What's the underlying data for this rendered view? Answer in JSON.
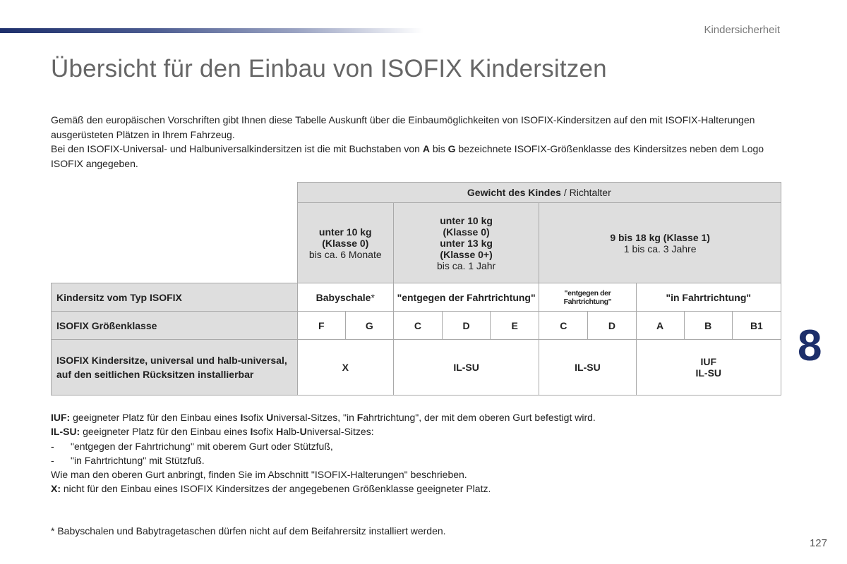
{
  "header": {
    "section": "Kindersicherheit"
  },
  "title": "Übersicht für den Einbau von ISOFIX Kindersitzen",
  "intro": {
    "p1": "Gemäß den europäischen Vorschriften gibt Ihnen diese Tabelle Auskunft über die Einbaumöglichkeiten von ISOFIX-Kindersitzen auf den mit ISOFIX-Halterungen ausgerüsteten Plätzen in Ihrem Fahrzeug.",
    "p2a": "Bei den ISOFIX-Universal- und Halbuniversalkindersitzen ist die mit Buchstaben von ",
    "p2b": "A",
    "p2c": " bis ",
    "p2d": "G",
    "p2e": " bezeichnete ISOFIX-Größenklasse des Kindersitzes neben dem Logo ISOFIX angegeben."
  },
  "table": {
    "weight_header_bold": "Gewicht des Kindes",
    "weight_header_rest": " / Richtalter",
    "groups": [
      {
        "lines": [
          "unter 10 kg",
          "(Klasse 0)"
        ],
        "sub": "bis ca. 6 Monate"
      },
      {
        "lines": [
          "unter 10 kg",
          "(Klasse 0)",
          "unter 13 kg",
          "(Klasse 0+)"
        ],
        "sub": "bis ca. 1 Jahr"
      },
      {
        "lines": [
          "9 bis 18 kg (Klasse 1)"
        ],
        "sub": "1 bis ca. 3 Jahre"
      }
    ],
    "row_type": {
      "label": "Kindersitz vom Typ ISOFIX",
      "values": [
        "Babyschale",
        "*",
        "\"entgegen der Fahrtrichtung\"",
        "\"entgegen der Fahrtrichtung\"",
        "\"in Fahrtrichtung\""
      ]
    },
    "row_size": {
      "label": "ISOFIX Größenklasse",
      "values": [
        "F",
        "G",
        "C",
        "D",
        "E",
        "C",
        "D",
        "A",
        "B",
        "B1"
      ]
    },
    "row_seats": {
      "label_a": "ISOFIX Kindersitze",
      "label_b": ", universal und halb-universal, auf den seitlichen Rücksitzen installierbar",
      "values": [
        "X",
        "IL-SU",
        "IL-SU",
        "IUF",
        "IL-SU"
      ]
    }
  },
  "notes": {
    "iuf_key": "IUF:",
    "iuf_parts": [
      " geeigneter Platz für den Einbau eines ",
      "I",
      "sofix ",
      "U",
      "niversal-Sitzes, \"in ",
      "F",
      "ahrtrichtung\", der mit dem oberen Gurt befestigt wird."
    ],
    "ilsu_key": "IL-SU:",
    "ilsu_parts": [
      " geeigneter Platz für den Einbau eines ",
      "I",
      "sofix ",
      "H",
      "alb-",
      "U",
      "niversal-Sitzes:"
    ],
    "bullet1_dash": "-",
    "bullet1": "\"entgegen der Fahrtrichung\" mit oberem Gurt oder Stützfuß,",
    "bullet2_dash": "-",
    "bullet2": "\"in Fahrtrichtung\" mit Stützfuß.",
    "line_gurt": "Wie man den oberen Gurt anbringt, finden Sie im Abschnitt \"ISOFIX-Halterungen\" beschrieben.",
    "x_key": "X:",
    "x_text": " nicht für den Einbau eines ISOFIX Kindersitzes der angegebenen Größenklasse geeigneter Platz."
  },
  "footnote": "* Babyschalen und Babytragetaschen dürfen nicht auf dem Beifahrersitz installiert werden.",
  "chapter_number": "8",
  "page_number": "127",
  "colors": {
    "accent": "#1d2f6b",
    "table_header_bg": "#dedede",
    "border": "#a9a9a9"
  }
}
